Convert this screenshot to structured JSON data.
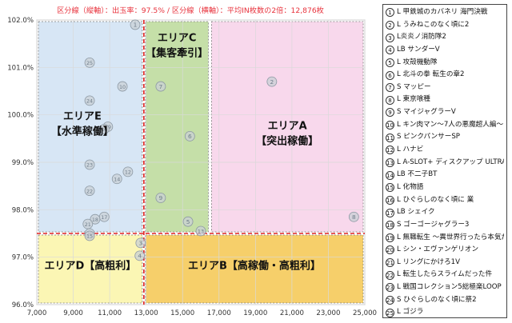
{
  "chart_data": {
    "type": "scatter",
    "title": "区分線（縦軸）：出玉率：97.5% / 区分線（横軸）：平均IN枚数の2倍：12,876枚",
    "xlim": [
      7000,
      25000
    ],
    "ylim": [
      96.0,
      102.0
    ],
    "x_ticks": [
      "7,000",
      "9,000",
      "11,000",
      "13,000",
      "15,000",
      "17,000",
      "19,000",
      "21,000",
      "23,000",
      "25,000"
    ],
    "y_ticks": [
      "102.0%",
      "101.0%",
      "100.0%",
      "99.0%",
      "98.0%",
      "97.0%",
      "96.0%"
    ],
    "divider_x": 12876,
    "divider_y": 97.5,
    "regions": [
      {
        "label": "エリアA",
        "sublabel": "【突出稼働】",
        "x_range": [
          16500,
          25000
        ],
        "y_range": [
          97.5,
          102.0
        ],
        "color": "#f8d8ec"
      },
      {
        "label": "エリアB【高稼働・高粗利】",
        "sublabel": "",
        "x_range": [
          12876,
          25000
        ],
        "y_range": [
          96.0,
          97.5
        ],
        "color": "#f6cf6a"
      },
      {
        "label": "エリアC",
        "sublabel": "【集客牽引】",
        "x_range": [
          12876,
          16500
        ],
        "y_range": [
          97.5,
          102.0
        ],
        "color": "#c5dfa8"
      },
      {
        "label": "エリアD【高粗利】",
        "sublabel": "",
        "x_range": [
          7000,
          12876
        ],
        "y_range": [
          96.0,
          97.5
        ],
        "color": "#fbf6b4"
      },
      {
        "label": "エリアE",
        "sublabel": "【水準稼働】",
        "x_range": [
          7000,
          12876
        ],
        "y_range": [
          97.5,
          102.0
        ],
        "color": "#d7e6f5"
      }
    ],
    "points": [
      {
        "id": "1",
        "x": 12400,
        "y": 101.9
      },
      {
        "id": "25",
        "x": 9900,
        "y": 101.1
      },
      {
        "id": "2",
        "x": 19900,
        "y": 100.7
      },
      {
        "id": "7",
        "x": 13800,
        "y": 100.6
      },
      {
        "id": "10",
        "x": 11700,
        "y": 100.6
      },
      {
        "id": "24",
        "x": 9900,
        "y": 100.3
      },
      {
        "id": "19",
        "x": 10900,
        "y": 99.75
      },
      {
        "id": "16",
        "x": 10700,
        "y": 99.7
      },
      {
        "id": "6",
        "x": 15400,
        "y": 99.55
      },
      {
        "id": "23",
        "x": 9900,
        "y": 98.95
      },
      {
        "id": "12",
        "x": 12000,
        "y": 98.8
      },
      {
        "id": "14",
        "x": 11400,
        "y": 98.65
      },
      {
        "id": "22",
        "x": 9900,
        "y": 98.4
      },
      {
        "id": "9",
        "x": 13800,
        "y": 98.25
      },
      {
        "id": "17",
        "x": 10700,
        "y": 97.85
      },
      {
        "id": "8",
        "x": 24400,
        "y": 97.85
      },
      {
        "id": "18",
        "x": 10200,
        "y": 97.8
      },
      {
        "id": "5",
        "x": 15300,
        "y": 97.75
      },
      {
        "id": "21",
        "x": 9800,
        "y": 97.7
      },
      {
        "id": "13",
        "x": 16000,
        "y": 97.55
      },
      {
        "id": "20",
        "x": 9900,
        "y": 97.5
      },
      {
        "id": "15",
        "x": 9900,
        "y": 97.45
      },
      {
        "id": "3",
        "x": 12700,
        "y": 97.3
      },
      {
        "id": "4",
        "x": 12650,
        "y": 97.03
      }
    ]
  },
  "legend": [
    {
      "num": "1",
      "label": "L 甲鉄城のカバネリ 海門決戦"
    },
    {
      "num": "2",
      "label": "L うみねこのなく頃に2"
    },
    {
      "num": "3",
      "label": "L炎炎ノ消防隊2"
    },
    {
      "num": "4",
      "label": "LB サンダーV"
    },
    {
      "num": "5",
      "label": "L 攻殻機動隊"
    },
    {
      "num": "6",
      "label": "L 北斗の拳 転生の章2"
    },
    {
      "num": "7",
      "label": "S マッピー"
    },
    {
      "num": "8",
      "label": "L 東京喰種"
    },
    {
      "num": "9",
      "label": "S マイジャグラーV"
    },
    {
      "num": "10",
      "label": "L キン肉マン～7人の悪魔超人編～"
    },
    {
      "num": "11",
      "label": "S ピンクパンサーSP"
    },
    {
      "num": "12",
      "label": "L ハナビ"
    },
    {
      "num": "13",
      "label": "L A-SLOT+ ディスクアップ ULTRAREMIX"
    },
    {
      "num": "14",
      "label": "LB 不二子BT"
    },
    {
      "num": "15",
      "label": "L 化物語"
    },
    {
      "num": "16",
      "label": "L ひぐらしのなく頃に 業"
    },
    {
      "num": "17",
      "label": "LB シェイク"
    },
    {
      "num": "18",
      "label": "S ゴーゴージャグラー3"
    },
    {
      "num": "19",
      "label": "L 無職転生 ～異世界行ったら本気だす～"
    },
    {
      "num": "20",
      "label": "L シン・エヴァンゲリオン"
    },
    {
      "num": "21",
      "label": "L リングにかけろ1V"
    },
    {
      "num": "22",
      "label": "L 転生したらスライムだった件"
    },
    {
      "num": "23",
      "label": "L 戦国コレクション5総極楽LOOP"
    },
    {
      "num": "24",
      "label": "S ひぐらしのなく頃に祭2"
    },
    {
      "num": "25",
      "label": "L ゴジラ"
    }
  ],
  "colors": {
    "title": "#e8323c",
    "point_fill": "#c9d0d6",
    "point_stroke": "#8c98a3",
    "point_text": "#6f7d8a",
    "divider": "#e02020",
    "region_text": "#111111"
  }
}
